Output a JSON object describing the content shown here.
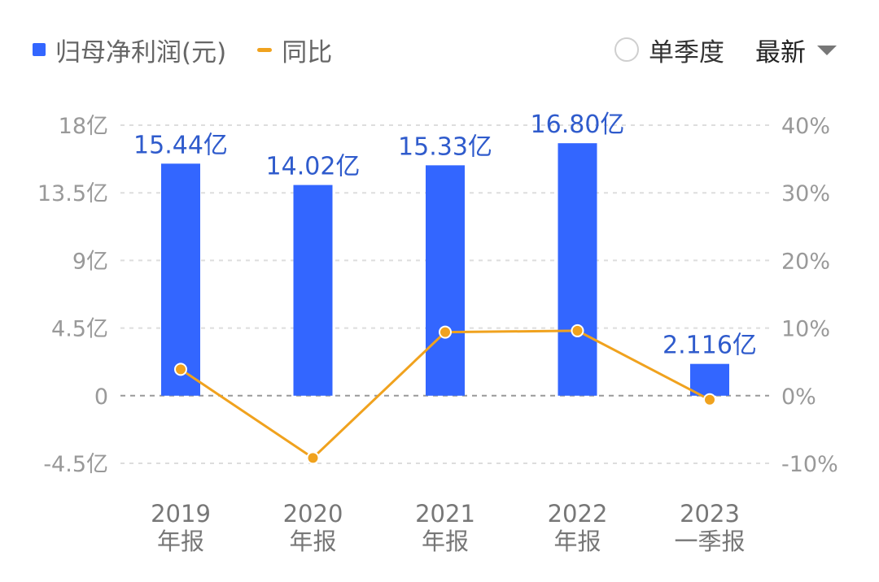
{
  "legend": {
    "bar_series": "归母净利润(元)",
    "line_series": "同比"
  },
  "controls": {
    "single_quarter_label": "单季度",
    "sort_label": "最新"
  },
  "colors": {
    "bar": "#3366ff",
    "line": "#f0a21e",
    "bar_label": "#2f5bcc",
    "grid": "#dddddd",
    "zero_line": "#999999"
  },
  "chart_data": {
    "type": "bar",
    "categories": [
      [
        "2019",
        "年报"
      ],
      [
        "2020",
        "年报"
      ],
      [
        "2021",
        "年报"
      ],
      [
        "2022",
        "年报"
      ],
      [
        "2023",
        "一季报"
      ]
    ],
    "series": [
      {
        "name": "归母净利润(元)",
        "type": "bar",
        "axis": "left",
        "values": [
          15.44,
          14.02,
          15.33,
          16.8,
          2.116
        ],
        "labels": [
          "15.44亿",
          "14.02亿",
          "15.33亿",
          "16.80亿",
          "2.116亿"
        ]
      },
      {
        "name": "同比",
        "type": "line",
        "axis": "right",
        "values": [
          3.9,
          -9.2,
          9.4,
          9.6,
          -0.6
        ]
      }
    ],
    "left_axis": {
      "ylim": [
        -4.5,
        18
      ],
      "ticks": [
        18,
        13.5,
        9,
        4.5,
        0,
        -4.5
      ],
      "tick_labels": [
        "18亿",
        "13.5亿",
        "9亿",
        "4.5亿",
        "0",
        "-4.5亿"
      ]
    },
    "right_axis": {
      "ylim": [
        -10,
        40
      ],
      "ticks": [
        40,
        30,
        20,
        10,
        0,
        -10
      ],
      "tick_labels": [
        "40%",
        "30%",
        "20%",
        "10%",
        "0%",
        "-10%"
      ]
    },
    "grid": true,
    "legend_position": "top-left"
  }
}
